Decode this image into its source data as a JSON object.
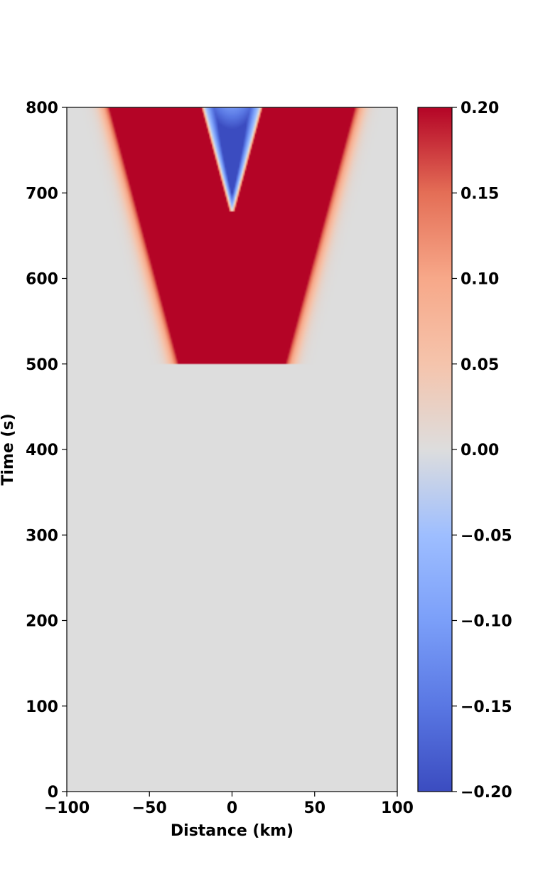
{
  "chart_data": {
    "type": "heatmap",
    "title": "",
    "xlabel": "Distance (km)",
    "ylabel": "Time (s)",
    "xlim": [
      -100,
      100
    ],
    "ylim": [
      0,
      800
    ],
    "x_ticks": [
      -100,
      -50,
      0,
      50,
      100
    ],
    "x_tick_labels": [
      "−100",
      "−50",
      "0",
      "50",
      "100"
    ],
    "y_ticks": [
      0,
      100,
      200,
      300,
      400,
      500,
      600,
      700,
      800
    ],
    "y_tick_labels": [
      "0",
      "100",
      "200",
      "300",
      "400",
      "500",
      "600",
      "700",
      "800"
    ],
    "colormap": "coolwarm",
    "vmin": -0.2,
    "vmax": 0.2,
    "colorbar_ticks": [
      0.2,
      0.15,
      0.1,
      0.05,
      0.0,
      -0.05,
      -0.1,
      -0.15,
      -0.2
    ],
    "colorbar_tick_labels": [
      "0.20",
      "0.15",
      "0.10",
      "0.05",
      "0.00",
      "−0.05",
      "−0.10",
      "−0.15",
      "−0.20"
    ],
    "colors": {
      "red": "#b40426",
      "blue": "#3b4cc0",
      "neutral": "#dddddd"
    }
  }
}
